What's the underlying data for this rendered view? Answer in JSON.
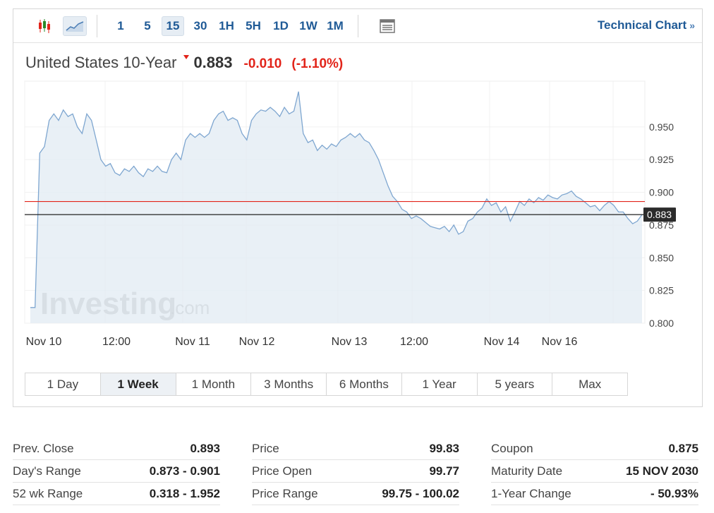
{
  "toolbar": {
    "candles_icon": "candlestick-icon",
    "area_icon": "area-chart-icon",
    "intervals": [
      "1",
      "5",
      "15",
      "30",
      "1H",
      "5H",
      "1D",
      "1W",
      "1M"
    ],
    "active_interval": "15",
    "settings_icon": "chart-settings-icon",
    "technical_chart": "Technical Chart",
    "technical_arrow": "»"
  },
  "instrument": {
    "name": "United States 10-Year",
    "price": "0.883",
    "change": "-0.010",
    "change_pct": "(-1.10%)"
  },
  "chart_data": {
    "type": "area",
    "y_ticks": [
      "0.950",
      "0.925",
      "0.900",
      "0.875",
      "0.850",
      "0.825",
      "0.800"
    ],
    "ylim": [
      0.8,
      0.985
    ],
    "x_labels": [
      "Nov 10",
      "12:00",
      "Nov 11",
      "Nov 12",
      "Nov 13",
      "12:00",
      "Nov 14",
      "Nov 16"
    ],
    "prev_close": 0.893,
    "last_value": 0.883,
    "last_label": "0.883",
    "watermark": "Investing",
    "watermark_suffix": ".com",
    "colors": {
      "line": "#7ea6d0",
      "fill": "#e3ecf4",
      "prev_close": "#e2241a",
      "last": "#222222"
    },
    "series": [
      {
        "values": [
          0.812,
          0.812,
          0.93,
          0.935,
          0.955,
          0.96,
          0.955,
          0.963,
          0.958,
          0.96,
          0.95,
          0.945,
          0.96,
          0.955,
          0.94,
          0.925,
          0.92,
          0.922,
          0.915,
          0.913,
          0.918,
          0.916,
          0.92,
          0.915,
          0.912,
          0.918,
          0.916,
          0.92,
          0.916,
          0.915,
          0.925,
          0.93,
          0.925,
          0.94,
          0.945,
          0.942,
          0.945,
          0.942,
          0.945,
          0.955,
          0.96,
          0.962,
          0.955,
          0.957,
          0.955,
          0.945,
          0.94,
          0.955,
          0.96,
          0.963,
          0.962,
          0.965,
          0.962,
          0.958,
          0.965,
          0.96,
          0.962,
          0.977,
          0.945,
          0.938,
          0.94,
          0.932,
          0.936,
          0.933,
          0.937,
          0.935,
          0.94,
          0.942,
          0.945,
          0.942,
          0.945,
          0.94,
          0.938,
          0.932,
          0.925,
          0.915,
          0.905,
          0.897,
          0.893,
          0.887,
          0.885,
          0.88,
          0.882,
          0.88,
          0.877,
          0.874,
          0.873,
          0.872,
          0.874,
          0.87,
          0.875,
          0.868,
          0.87,
          0.878,
          0.88,
          0.885,
          0.888,
          0.895,
          0.89,
          0.892,
          0.885,
          0.889,
          0.878,
          0.885,
          0.893,
          0.89,
          0.895,
          0.892,
          0.896,
          0.894,
          0.898,
          0.896,
          0.895,
          0.898,
          0.899,
          0.901,
          0.897,
          0.895,
          0.892,
          0.889,
          0.89,
          0.886,
          0.89,
          0.893,
          0.89,
          0.885,
          0.885,
          0.88,
          0.876,
          0.878,
          0.883
        ]
      }
    ]
  },
  "range_tabs": [
    "1 Day",
    "1 Week",
    "1 Month",
    "3 Months",
    "6 Months",
    "1 Year",
    "5 years",
    "Max"
  ],
  "active_range": "1 Week",
  "stats": {
    "col1": [
      {
        "label": "Prev. Close",
        "value": "0.893"
      },
      {
        "label": "Day's Range",
        "value": "0.873 - 0.901"
      },
      {
        "label": "52 wk Range",
        "value": "0.318 - 1.952"
      }
    ],
    "col2": [
      {
        "label": "Price",
        "value": "99.83"
      },
      {
        "label": "Price Open",
        "value": "99.77"
      },
      {
        "label": "Price Range",
        "value": "99.75 - 100.02"
      }
    ],
    "col3": [
      {
        "label": "Coupon",
        "value": "0.875"
      },
      {
        "label": "Maturity Date",
        "value": "15 NOV 2030"
      },
      {
        "label": "1-Year Change",
        "value": "- 50.93%"
      }
    ]
  }
}
